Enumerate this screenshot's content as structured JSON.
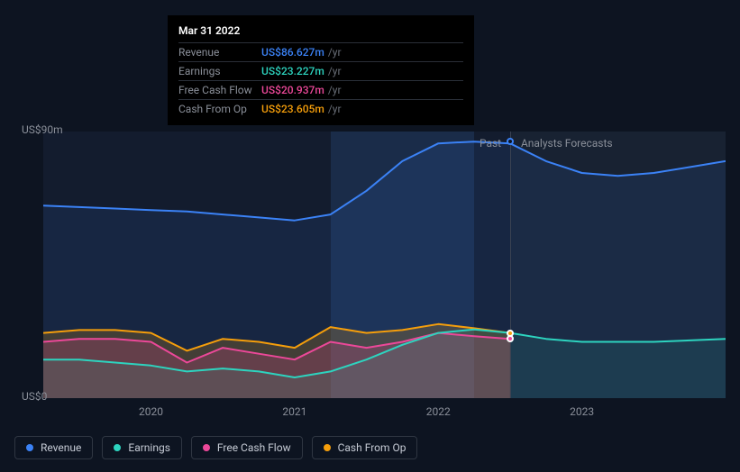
{
  "tooltip": {
    "date": "Mar 31 2022",
    "rows": [
      {
        "label": "Revenue",
        "value": "US$86.627m",
        "unit": "/yr",
        "color": "#3b82f6"
      },
      {
        "label": "Earnings",
        "value": "US$23.227m",
        "unit": "/yr",
        "color": "#2dd4bf"
      },
      {
        "label": "Free Cash Flow",
        "value": "US$20.937m",
        "unit": "/yr",
        "color": "#ec4899"
      },
      {
        "label": "Cash From Op",
        "value": "US$23.605m",
        "unit": "/yr",
        "color": "#f59e0b"
      }
    ]
  },
  "chart": {
    "type": "area",
    "background_color": "#0d1421",
    "past_bg": "#131c2e",
    "future_bg": "#182232",
    "highlight_bg": "rgba(60,120,200,0.18)",
    "grid_color": "#2f3642",
    "ylim": [
      0,
      90
    ],
    "yticks": [
      {
        "value": 90,
        "label": "US$90m"
      },
      {
        "value": 0,
        "label": "US$0"
      }
    ],
    "xlim": [
      2019.25,
      2024.0
    ],
    "xticks": [
      {
        "value": 2020,
        "label": "2020"
      },
      {
        "value": 2021,
        "label": "2021"
      },
      {
        "value": 2022,
        "label": "2022"
      },
      {
        "value": 2023,
        "label": "2023"
      }
    ],
    "split_x": 2022.5,
    "highlight_range": [
      2021.25,
      2022.25
    ],
    "hover_x": 2022.5,
    "split_labels": {
      "past": "Past",
      "future": "Analysts Forecasts"
    },
    "label_fontsize": 12,
    "series": [
      {
        "name": "Revenue",
        "color": "#3b82f6",
        "fill": "rgba(59,130,246,0.10)",
        "points": [
          [
            2019.25,
            65
          ],
          [
            2019.5,
            64.5
          ],
          [
            2019.75,
            64
          ],
          [
            2020.0,
            63.5
          ],
          [
            2020.25,
            63
          ],
          [
            2020.5,
            62
          ],
          [
            2020.75,
            61
          ],
          [
            2021.0,
            60
          ],
          [
            2021.25,
            62
          ],
          [
            2021.5,
            70
          ],
          [
            2021.75,
            80
          ],
          [
            2022.0,
            86
          ],
          [
            2022.25,
            86.6
          ],
          [
            2022.5,
            86
          ],
          [
            2022.75,
            80
          ],
          [
            2023.0,
            76
          ],
          [
            2023.25,
            75
          ],
          [
            2023.5,
            76
          ],
          [
            2023.75,
            78
          ],
          [
            2024.0,
            80
          ]
        ]
      },
      {
        "name": "Cash From Op",
        "color": "#f59e0b",
        "fill": "rgba(245,158,11,0.20)",
        "past_only": true,
        "points": [
          [
            2019.25,
            22
          ],
          [
            2019.5,
            23
          ],
          [
            2019.75,
            23
          ],
          [
            2020.0,
            22
          ],
          [
            2020.25,
            16
          ],
          [
            2020.5,
            20
          ],
          [
            2020.75,
            19
          ],
          [
            2021.0,
            17
          ],
          [
            2021.25,
            24
          ],
          [
            2021.5,
            22
          ],
          [
            2021.75,
            23
          ],
          [
            2022.0,
            25
          ],
          [
            2022.25,
            23.6
          ],
          [
            2022.5,
            22
          ]
        ]
      },
      {
        "name": "Free Cash Flow",
        "color": "#ec4899",
        "fill": "rgba(236,72,153,0.20)",
        "past_only": true,
        "points": [
          [
            2019.25,
            19
          ],
          [
            2019.5,
            20
          ],
          [
            2019.75,
            20
          ],
          [
            2020.0,
            19
          ],
          [
            2020.25,
            12
          ],
          [
            2020.5,
            17
          ],
          [
            2020.75,
            15
          ],
          [
            2021.0,
            13
          ],
          [
            2021.25,
            19
          ],
          [
            2021.5,
            17
          ],
          [
            2021.75,
            19
          ],
          [
            2022.0,
            22
          ],
          [
            2022.25,
            20.9
          ],
          [
            2022.5,
            20
          ]
        ]
      },
      {
        "name": "Earnings",
        "color": "#2dd4bf",
        "fill": "rgba(45,212,191,0.10)",
        "points": [
          [
            2019.25,
            13
          ],
          [
            2019.5,
            13
          ],
          [
            2019.75,
            12
          ],
          [
            2020.0,
            11
          ],
          [
            2020.25,
            9
          ],
          [
            2020.5,
            10
          ],
          [
            2020.75,
            9
          ],
          [
            2021.0,
            7
          ],
          [
            2021.25,
            9
          ],
          [
            2021.5,
            13
          ],
          [
            2021.75,
            18
          ],
          [
            2022.0,
            22
          ],
          [
            2022.25,
            23.2
          ],
          [
            2022.5,
            22
          ],
          [
            2022.75,
            20
          ],
          [
            2023.0,
            19
          ],
          [
            2023.25,
            19
          ],
          [
            2023.5,
            19
          ],
          [
            2023.75,
            19.5
          ],
          [
            2024.0,
            20
          ]
        ]
      }
    ],
    "hover_dots": [
      {
        "series": "Cash From Op",
        "color": "#f59e0b"
      },
      {
        "series": "Free Cash Flow",
        "color": "#ec4899"
      }
    ]
  },
  "legend": [
    {
      "label": "Revenue",
      "color": "#3b82f6"
    },
    {
      "label": "Earnings",
      "color": "#2dd4bf"
    },
    {
      "label": "Free Cash Flow",
      "color": "#ec4899"
    },
    {
      "label": "Cash From Op",
      "color": "#f59e0b"
    }
  ]
}
